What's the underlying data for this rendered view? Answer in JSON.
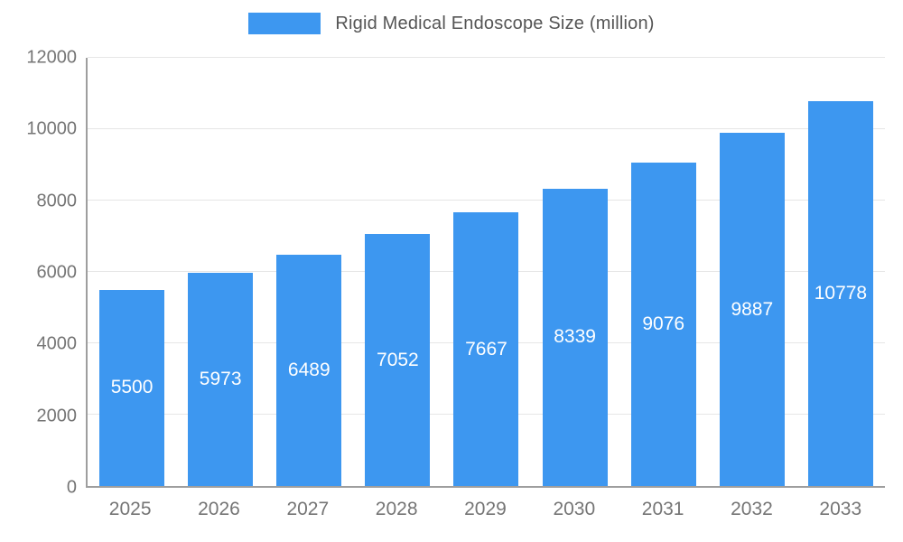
{
  "legend": {
    "label": "Rigid Medical Endoscope Size (million)"
  },
  "colors": {
    "bar": "#3d97f0",
    "bar_label": "#ffffff",
    "axis_text": "#757575",
    "legend_text": "#555555",
    "grid": "#e6e6e6",
    "axis_line": "#9e9e9e",
    "background": "#ffffff"
  },
  "chart_data": {
    "type": "bar",
    "title": "Rigid Medical Endoscope Size (million)",
    "categories": [
      "2025",
      "2026",
      "2027",
      "2028",
      "2029",
      "2030",
      "2031",
      "2032",
      "2033"
    ],
    "values": [
      5500,
      5973,
      6489,
      7052,
      7667,
      8339,
      9076,
      9887,
      10778
    ],
    "xlabel": "",
    "ylabel": "",
    "ylim": [
      0,
      12000
    ],
    "ytick_step": 2000,
    "yticks": [
      0,
      2000,
      4000,
      6000,
      8000,
      10000,
      12000
    ],
    "grid": true,
    "legend_position": "top",
    "bar_value_labels_inside": true
  }
}
